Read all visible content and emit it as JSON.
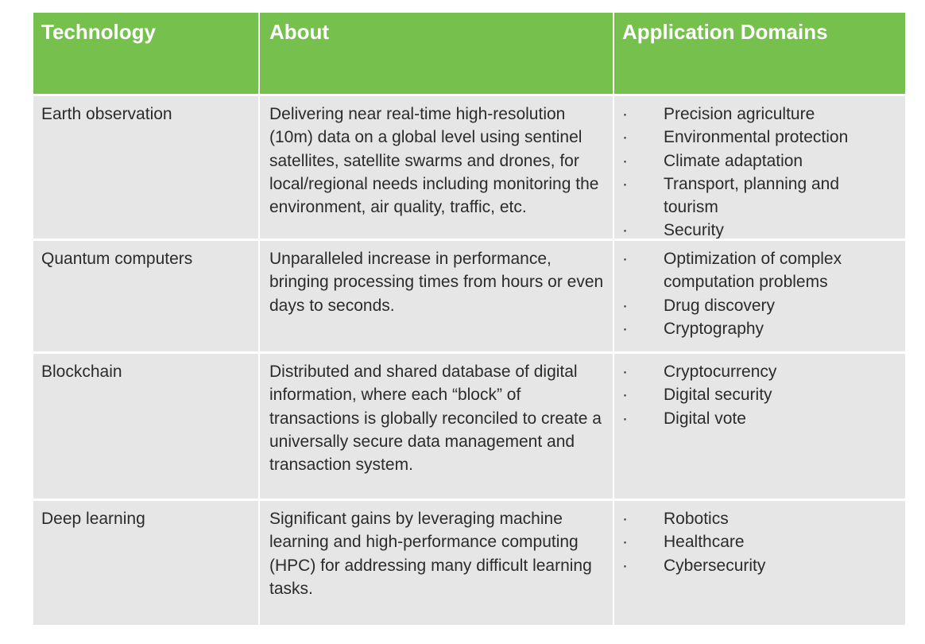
{
  "table": {
    "headers": {
      "technology": "Technology",
      "about": "About",
      "domains": "Application Domains"
    },
    "rows": [
      {
        "technology": "Earth observation",
        "about": "Delivering near real-time high-resolution (10m) data on a global level using sentinel satellites, satellite swarms and drones, for local/regional needs including monitoring the environment, air quality, traffic, etc.",
        "domains": [
          "Precision agriculture",
          "Environmental protection",
          "Climate adaptation",
          "Transport, planning and tourism",
          "Security"
        ]
      },
      {
        "technology": "Quantum computers",
        "about": "Unparalleled increase in performance, bringing processing times from hours or even days to seconds.",
        "domains": [
          "Optimization of complex computation problems",
          "Drug discovery",
          "Cryptography"
        ]
      },
      {
        "technology": "Blockchain",
        "about": "Distributed and shared database of digital information, where each “block” of transactions is globally reconciled to create a universally secure data management and transaction system.",
        "domains": [
          "Cryptocurrency",
          "Digital security",
          "Digital vote"
        ]
      },
      {
        "technology": "Deep learning",
        "about": "Significant gains by leveraging machine learning and high-performance computing (HPC) for addressing many difficult learning tasks.",
        "domains": [
          "Robotics",
          "Healthcare",
          "Cybersecurity"
        ]
      }
    ]
  },
  "colors": {
    "header_background": "#76c04e",
    "header_text": "#ffffff",
    "cell_background": "#e6e6e6",
    "cell_text": "#2b2b2b"
  }
}
